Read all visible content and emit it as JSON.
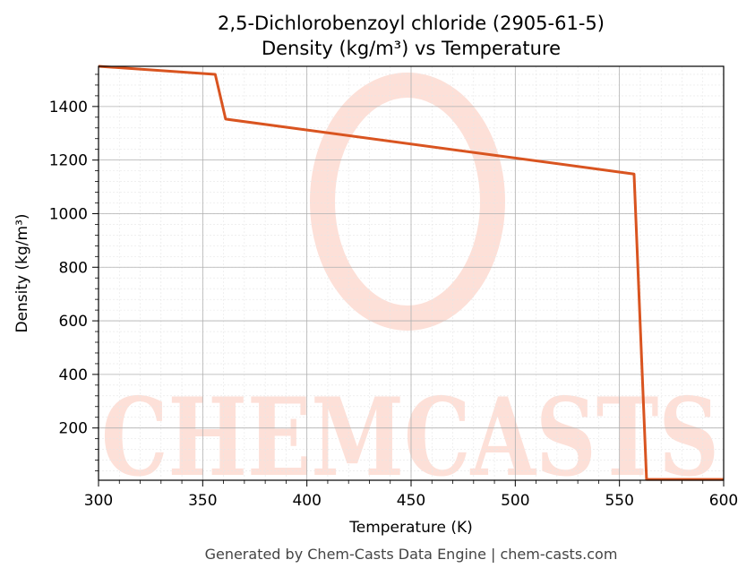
{
  "chart_data": {
    "type": "line",
    "title": "2,5-Dichlorobenzoyl chloride (2905-61-5)",
    "subtitle": "Density (kg/m³) vs Temperature",
    "xlabel": "Temperature (K)",
    "ylabel": "Density (kg/m³)",
    "xlim": [
      300,
      600
    ],
    "ylim": [
      5,
      1550
    ],
    "x_ticks": [
      300,
      350,
      400,
      450,
      500,
      550,
      600
    ],
    "y_ticks": [
      200,
      400,
      600,
      800,
      1000,
      1200,
      1400
    ],
    "grid": true,
    "line_color": "#d95420",
    "series": [
      {
        "x": [
          300,
          356,
          361,
          557,
          563,
          600
        ],
        "values": [
          1550,
          1520,
          1353,
          1148,
          8,
          8
        ]
      }
    ]
  },
  "watermark": {
    "text": "CHEMCASTS",
    "color": "#fde0d8"
  },
  "footer": "Generated by Chem-Casts Data Engine | chem-casts.com"
}
